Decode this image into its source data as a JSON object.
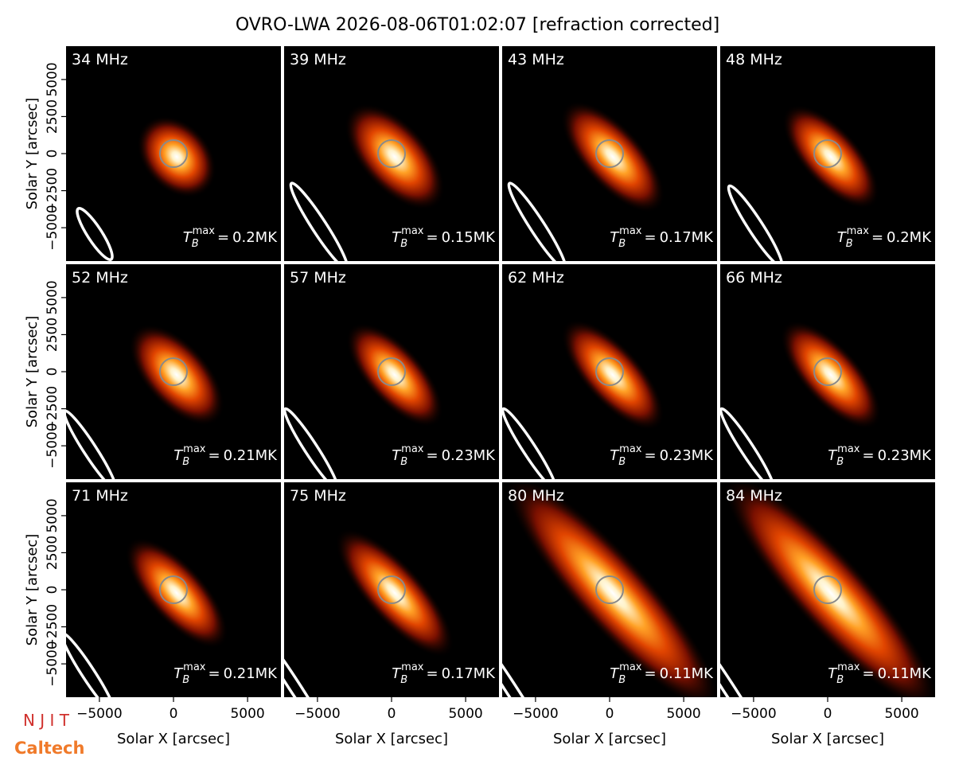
{
  "title": "OVRO-LWA 2026-08-06T01:02:07 [refraction corrected]",
  "type": "image-grid",
  "x_label": "Solar X [arcsec]",
  "y_label": "Solar Y [arcsec]",
  "xlim": [
    -7250,
    7250
  ],
  "ylim": [
    -7250,
    7250
  ],
  "xticks": [
    {
      "value": -5000,
      "label": "−5000"
    },
    0,
    5000
  ],
  "yticks": [
    {
      "value": -5000,
      "label": "−5000"
    },
    {
      "value": -2500,
      "label": "−2500"
    },
    0,
    2500,
    5000
  ],
  "tb_symbol": "T",
  "tb_sub": "B",
  "tb_sup": "max",
  "tb_equals": "=",
  "panels": [
    {
      "label": "34 MHz",
      "tmax": "0.2MK"
    },
    {
      "label": "39 MHz",
      "tmax": "0.15MK"
    },
    {
      "label": "43 MHz",
      "tmax": "0.17MK"
    },
    {
      "label": "48 MHz",
      "tmax": "0.2MK"
    },
    {
      "label": "52 MHz",
      "tmax": "0.21MK"
    },
    {
      "label": "57 MHz",
      "tmax": "0.23MK"
    },
    {
      "label": "62 MHz",
      "tmax": "0.23MK"
    },
    {
      "label": "66 MHz",
      "tmax": "0.23MK"
    },
    {
      "label": "71 MHz",
      "tmax": "0.21MK"
    },
    {
      "label": "75 MHz",
      "tmax": "0.17MK"
    },
    {
      "label": "80 MHz",
      "tmax": "0.11MK"
    },
    {
      "label": "84 MHz",
      "tmax": "0.11MK"
    }
  ],
  "logos": {
    "njit": "N J I T",
    "caltech": "Caltech"
  }
}
